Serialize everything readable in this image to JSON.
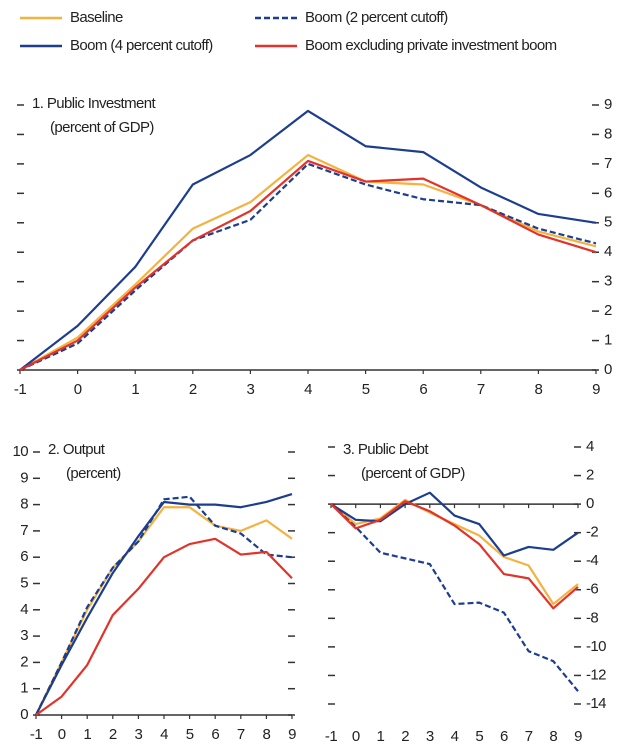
{
  "chart_data": [
    {
      "type": "line",
      "title": "1. Public Investment",
      "subtitle": "(percent of GDP)",
      "x": [
        -1,
        0,
        1,
        2,
        3,
        4,
        5,
        6,
        7,
        8,
        9
      ],
      "xlim": [
        -1,
        9
      ],
      "xticks": [
        -1,
        0,
        1,
        2,
        3,
        4,
        5,
        6,
        7,
        8,
        9
      ],
      "ylim": [
        0,
        9
      ],
      "yticks": [
        0,
        1,
        2,
        3,
        4,
        5,
        6,
        7,
        8,
        9
      ],
      "ytick_side": "right",
      "series": [
        {
          "name": "Baseline",
          "color": "#f4b23e",
          "style": "solid",
          "values": [
            0,
            1.1,
            2.9,
            4.8,
            5.7,
            7.3,
            6.4,
            6.3,
            5.6,
            4.7,
            4.2
          ]
        },
        {
          "name": "Boom (2 percent cutoff)",
          "color": "#1d3d8f",
          "style": "dashed",
          "values": [
            0,
            0.9,
            2.7,
            4.4,
            5.1,
            7.0,
            6.3,
            5.8,
            5.6,
            4.8,
            4.3
          ]
        },
        {
          "name": "Boom (4 percent cutoff)",
          "color": "#1d3d8f",
          "style": "solid",
          "values": [
            0,
            1.5,
            3.5,
            6.3,
            7.3,
            8.8,
            7.6,
            7.4,
            6.2,
            5.3,
            5.0
          ]
        },
        {
          "name": "Boom excluding private investment boom",
          "color": "#e2332a",
          "style": "solid",
          "values": [
            0,
            1.0,
            2.8,
            4.4,
            5.4,
            7.1,
            6.4,
            6.5,
            5.6,
            4.6,
            4.0
          ]
        }
      ]
    },
    {
      "type": "line",
      "title": "2. Output",
      "subtitle": "(percent)",
      "x": [
        -1,
        0,
        1,
        2,
        3,
        4,
        5,
        6,
        7,
        8,
        9
      ],
      "xlim": [
        -1,
        9
      ],
      "xticks": [
        -1,
        0,
        1,
        2,
        3,
        4,
        5,
        6,
        7,
        8,
        9
      ],
      "ylim": [
        0,
        10
      ],
      "yticks": [
        0,
        1,
        2,
        3,
        4,
        5,
        6,
        7,
        8,
        9,
        10
      ],
      "ytick_side": "left",
      "series": [
        {
          "name": "Baseline",
          "color": "#f4b23e",
          "style": "solid",
          "values": [
            0,
            2.0,
            4.0,
            5.6,
            6.6,
            7.9,
            7.9,
            7.2,
            7.0,
            7.4,
            6.7
          ]
        },
        {
          "name": "Boom (2 percent cutoff)",
          "color": "#1d3d8f",
          "style": "dashed",
          "values": [
            0,
            2.0,
            4.1,
            5.6,
            6.6,
            8.2,
            8.3,
            7.2,
            6.9,
            6.1,
            6.0
          ]
        },
        {
          "name": "Boom (4 percent cutoff)",
          "color": "#1d3d8f",
          "style": "solid",
          "values": [
            0,
            1.9,
            3.7,
            5.4,
            6.8,
            8.1,
            8.0,
            8.0,
            7.9,
            8.1,
            8.4
          ]
        },
        {
          "name": "Boom excluding private investment boom",
          "color": "#e2332a",
          "style": "solid",
          "values": [
            0,
            0.7,
            1.9,
            3.8,
            4.8,
            6.0,
            6.5,
            6.7,
            6.1,
            6.2,
            5.2
          ]
        }
      ]
    },
    {
      "type": "line",
      "title": "3. Public Debt",
      "subtitle": "(percent of GDP)",
      "x": [
        -1,
        0,
        1,
        2,
        3,
        4,
        5,
        6,
        7,
        8,
        9
      ],
      "xlim": [
        -1,
        9
      ],
      "xticks": [
        -1,
        0,
        1,
        2,
        3,
        4,
        5,
        6,
        7,
        8,
        9
      ],
      "ylim": [
        -14,
        4
      ],
      "yticks": [
        -14,
        -12,
        -10,
        -8,
        -6,
        -4,
        -2,
        0,
        2,
        4
      ],
      "ytick_side": "right",
      "series": [
        {
          "name": "Baseline",
          "color": "#f4b23e",
          "style": "solid",
          "values": [
            0,
            -1.4,
            -1.0,
            0.3,
            -0.6,
            -1.4,
            -2.2,
            -3.7,
            -4.3,
            -7.0,
            -5.6
          ]
        },
        {
          "name": "Boom (2 percent cutoff)",
          "color": "#1d3d8f",
          "style": "dashed",
          "values": [
            0,
            -1.6,
            -3.4,
            -3.8,
            -4.2,
            -7.0,
            -6.9,
            -7.6,
            -10.3,
            -11.0,
            -13.1
          ]
        },
        {
          "name": "Boom (4 percent cutoff)",
          "color": "#1d3d8f",
          "style": "solid",
          "values": [
            0,
            -1.1,
            -1.2,
            0.0,
            0.8,
            -0.8,
            -1.4,
            -3.6,
            -3.0,
            -3.2,
            -2.0
          ]
        },
        {
          "name": "Boom excluding private investment boom",
          "color": "#e2332a",
          "style": "solid",
          "values": [
            0,
            -1.7,
            -1.1,
            0.2,
            -0.5,
            -1.5,
            -2.8,
            -4.9,
            -5.2,
            -7.3,
            -5.8
          ]
        }
      ]
    }
  ]
}
